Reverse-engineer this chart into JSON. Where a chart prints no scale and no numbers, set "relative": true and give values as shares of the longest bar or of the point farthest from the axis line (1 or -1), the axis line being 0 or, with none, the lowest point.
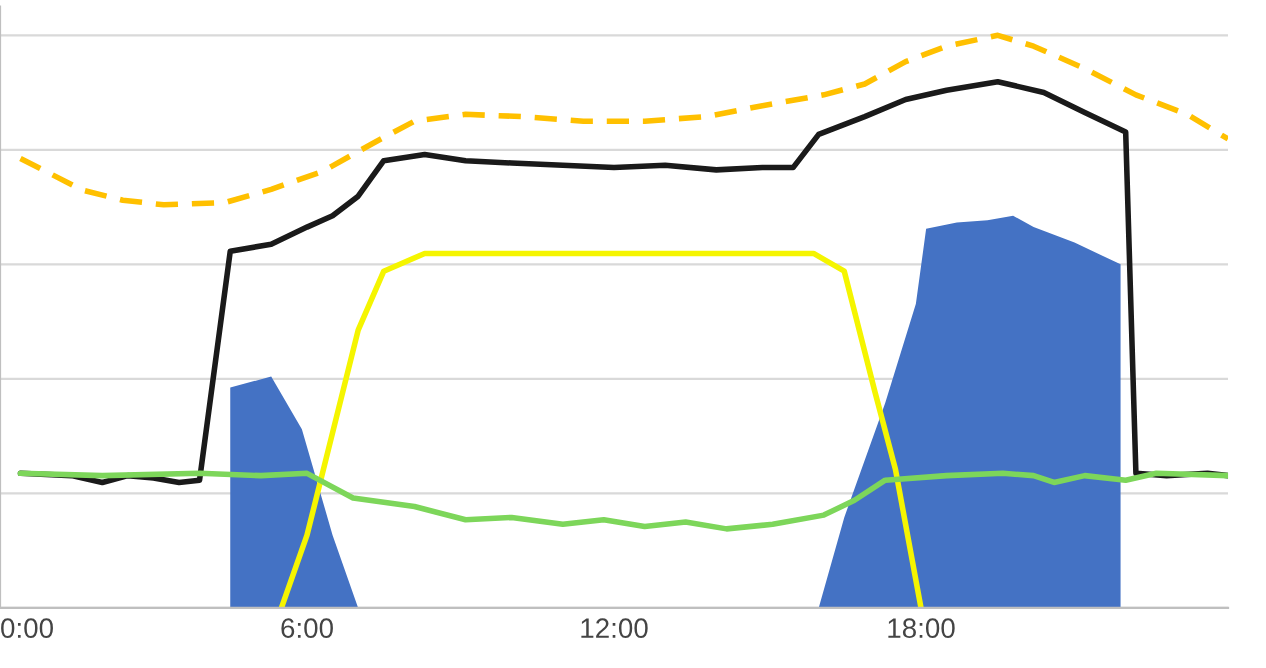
{
  "chart_data": {
    "type": "line",
    "relative": true,
    "xlim": [
      0,
      24
    ],
    "xticks": [
      {
        "value": 0,
        "label": "0:00"
      },
      {
        "value": 6,
        "label": "6:00"
      },
      {
        "value": 12,
        "label": "12:00"
      },
      {
        "value": 18,
        "label": "18:00"
      }
    ],
    "grid": "y",
    "legend": false,
    "series": [
      {
        "type": "area",
        "color": "#4472c4",
        "x": [
          4.5,
          4.5,
          5.3,
          5.9,
          6.5,
          7.0,
          10,
          16.0,
          16.5,
          17.3,
          17.9,
          18.1,
          18.7,
          19.3,
          19.8,
          20.2,
          21.0,
          21.9,
          21.9
        ],
        "values": [
          0,
          0.385,
          0.404,
          0.312,
          0.127,
          0,
          null,
          0,
          0.158,
          0.358,
          0.531,
          0.662,
          0.673,
          0.677,
          0.685,
          0.665,
          0.638,
          0.6,
          0
        ]
      },
      {
        "color": "#1a1a1a",
        "x": [
          0.4,
          1.4,
          2.0,
          2.5,
          3.0,
          3.5,
          3.9,
          4.5,
          5.3,
          6.0,
          6.5,
          7.0,
          7.5,
          8.3,
          9.1,
          10.0,
          11.0,
          12.0,
          13.0,
          14.0,
          14.9,
          15.5,
          16.0,
          16.9,
          17.7,
          18.5,
          19.5,
          20.4,
          21.2,
          22.0,
          22.2,
          22.8,
          23.6,
          24.0
        ],
        "values": [
          0.235,
          0.231,
          0.219,
          0.231,
          0.227,
          0.219,
          0.223,
          0.623,
          0.635,
          0.665,
          0.685,
          0.719,
          0.781,
          0.792,
          0.781,
          0.777,
          0.773,
          0.769,
          0.773,
          0.765,
          0.769,
          0.769,
          0.827,
          0.858,
          0.888,
          0.904,
          0.919,
          0.9,
          0.865,
          0.831,
          0.235,
          0.231,
          0.235,
          0.231
        ]
      },
      {
        "color": "#ffc000",
        "line_style": "dashed",
        "x": [
          0.4,
          1.6,
          2.4,
          3.2,
          4.4,
          5.3,
          6.3,
          7.3,
          8.1,
          9.1,
          10.2,
          11.4,
          12.6,
          13.8,
          14.9,
          16.1,
          16.9,
          17.7,
          18.5,
          19.5,
          20.2,
          21.2,
          22.2,
          23.2,
          24.0
        ],
        "values": [
          0.785,
          0.73,
          0.712,
          0.704,
          0.708,
          0.731,
          0.762,
          0.812,
          0.85,
          0.862,
          0.858,
          0.85,
          0.85,
          0.858,
          0.877,
          0.896,
          0.915,
          0.954,
          0.981,
          1,
          0.981,
          0.942,
          0.896,
          0.862,
          0.819
        ]
      },
      {
        "color": "#f5f500",
        "x": [
          5.5,
          6.0,
          7.0,
          7.5,
          8.3,
          15.9,
          16.5,
          17.1,
          17.5,
          18.0
        ],
        "values": [
          0,
          0.127,
          0.485,
          0.588,
          0.619,
          0.619,
          0.588,
          0.377,
          0.242,
          0
        ]
      },
      {
        "color": "#7dd65a",
        "x": [
          0.4,
          2.0,
          3.9,
          5.1,
          6.0,
          6.9,
          8.1,
          9.1,
          10.0,
          11.0,
          11.8,
          12.6,
          13.4,
          14.2,
          15.1,
          16.1,
          16.7,
          17.3,
          18.5,
          19.6,
          20.2,
          20.6,
          21.2,
          22.0,
          22.6,
          24.0
        ],
        "values": [
          0.235,
          0.231,
          0.235,
          0.231,
          0.235,
          0.192,
          0.177,
          0.154,
          0.158,
          0.146,
          0.154,
          0.142,
          0.15,
          0.138,
          0.146,
          0.162,
          0.188,
          0.223,
          0.231,
          0.235,
          0.231,
          0.219,
          0.231,
          0.223,
          0.235,
          0.231
        ]
      }
    ]
  }
}
